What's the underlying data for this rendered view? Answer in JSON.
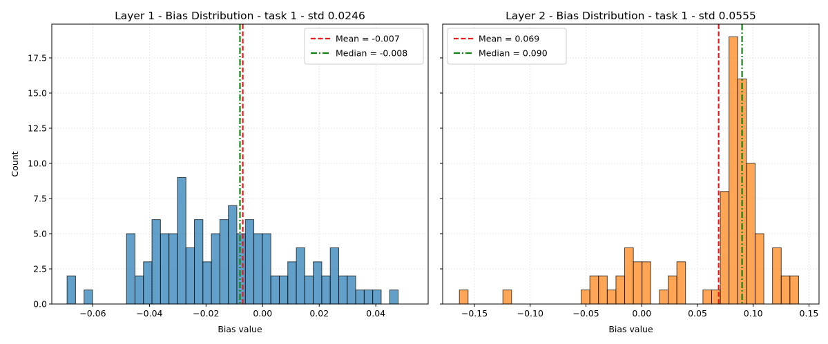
{
  "colors": {
    "blue": "#1f77b4",
    "orange": "#ff7f0e",
    "mean_line": "#e8171c",
    "median_line": "#128212",
    "grid": "#d7d7d7"
  },
  "chart_data": [
    {
      "type": "bar",
      "title": "Layer 1 - Bias Distribution - task 1 - std 0.0246",
      "xlabel": "Bias value",
      "ylabel": "Count",
      "xlim": [
        -0.0745,
        0.0585
      ],
      "ylim": [
        0,
        19.9
      ],
      "x_ticks": [
        -0.06,
        -0.04,
        -0.02,
        0.0,
        0.02,
        0.04
      ],
      "x_tick_labels": [
        "−0.06",
        "−0.04",
        "−0.02",
        "0.00",
        "0.02",
        "0.04"
      ],
      "y_ticks": [
        0,
        2.5,
        5.0,
        7.5,
        10.0,
        12.5,
        15.0,
        17.5
      ],
      "y_tick_labels": [
        "0.0",
        "2.5",
        "5.0",
        "7.5",
        "10.0",
        "12.5",
        "15.0",
        "17.5"
      ],
      "grid": true,
      "legend_position": "top-right",
      "color": "blue",
      "bin_edges": [
        -0.0691,
        -0.0661,
        -0.0631,
        -0.0601,
        -0.0571,
        -0.0541,
        -0.0511,
        -0.0481,
        -0.0451,
        -0.0421,
        -0.0391,
        -0.0361,
        -0.0331,
        -0.0301,
        -0.0271,
        -0.0241,
        -0.0211,
        -0.0181,
        -0.0151,
        -0.0121,
        -0.0091,
        -0.0061,
        -0.0031,
        -0.0001,
        0.0029,
        0.0059,
        0.0089,
        0.0119,
        0.0149,
        0.0179,
        0.0209,
        0.0239,
        0.0269,
        0.0299,
        0.0329,
        0.0359,
        0.0389,
        0.0419,
        0.0449,
        0.0479,
        0.0509,
        0.0539
      ],
      "counts": [
        2,
        0,
        1,
        0,
        0,
        0,
        0,
        5,
        2,
        3,
        6,
        5,
        5,
        9,
        4,
        6,
        3,
        5,
        6,
        7,
        5,
        6,
        5,
        5,
        2,
        2,
        3,
        4,
        2,
        3,
        2,
        4,
        2,
        2,
        1,
        1,
        1,
        0,
        1,
        0,
        0
      ],
      "mean": -0.007,
      "median": -0.008,
      "mean_label": "Mean = -0.007",
      "median_label": "Median = -0.008"
    },
    {
      "type": "bar",
      "title": "Layer 2 - Bias Distribution - task 1 - std 0.0555",
      "xlabel": "Bias value",
      "ylabel": "",
      "xlim": [
        -0.1785,
        0.159
      ],
      "ylim": [
        0,
        19.9
      ],
      "x_ticks": [
        -0.15,
        -0.1,
        -0.05,
        0.0,
        0.05,
        0.1,
        0.15
      ],
      "x_tick_labels": [
        "−0.15",
        "−0.10",
        "−0.05",
        "0.00",
        "0.05",
        "0.10",
        "0.15"
      ],
      "y_ticks": [
        0,
        2.5,
        5.0,
        7.5,
        10.0,
        12.5,
        15.0,
        17.5
      ],
      "y_tick_labels": [],
      "grid": true,
      "legend_position": "top-left",
      "color": "orange",
      "bin_edges": [
        -0.1635,
        -0.1557,
        -0.1479,
        -0.1401,
        -0.1323,
        -0.1245,
        -0.1167,
        -0.1089,
        -0.1011,
        -0.0933,
        -0.0855,
        -0.0777,
        -0.0699,
        -0.0621,
        -0.0543,
        -0.0465,
        -0.0387,
        -0.0309,
        -0.0231,
        -0.0153,
        -0.0075,
        0.0003,
        0.0081,
        0.0159,
        0.0237,
        0.0315,
        0.0393,
        0.0471,
        0.0549,
        0.0627,
        0.0705,
        0.0783,
        0.0861,
        0.0939,
        0.1017,
        0.1095,
        0.1173,
        0.1251,
        0.1329,
        0.1407,
        0.1485
      ],
      "counts": [
        1,
        0,
        0,
        0,
        0,
        1,
        0,
        0,
        0,
        0,
        0,
        0,
        0,
        0,
        1,
        2,
        2,
        1,
        2,
        4,
        3,
        3,
        0,
        1,
        2,
        3,
        0,
        0,
        1,
        1,
        8,
        19,
        16,
        10,
        5,
        0,
        4,
        2,
        2,
        0
      ],
      "mean": 0.069,
      "median": 0.09,
      "mean_label": "Mean = 0.069",
      "median_label": "Median = 0.090"
    }
  ]
}
